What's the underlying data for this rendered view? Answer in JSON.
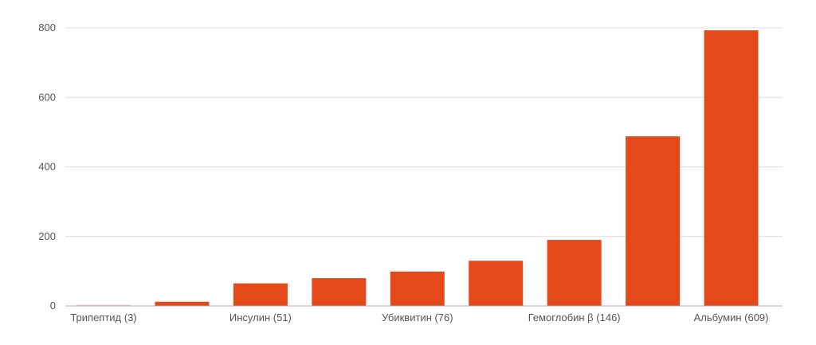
{
  "chart_data": {
    "type": "bar",
    "title": "",
    "xlabel": "",
    "ylabel": "",
    "ylim": [
      0,
      800
    ],
    "yticks": [
      0,
      200,
      400,
      600,
      800
    ],
    "grid": true,
    "legend": "none",
    "categories": [
      "Трипептид (3)",
      "",
      "Инсулин (51)",
      "",
      "Убиквитин (76)",
      "",
      "Гемоглобин β (146)",
      "",
      "Альбумин (609)"
    ],
    "values": [
      3,
      12,
      65,
      80,
      99,
      130,
      190,
      488,
      793
    ],
    "colors": {
      "bar": "#e44a19",
      "first_bar": "#f2c2b0",
      "grid": "#dcdcdc",
      "axis": "#b0a8b8"
    }
  }
}
